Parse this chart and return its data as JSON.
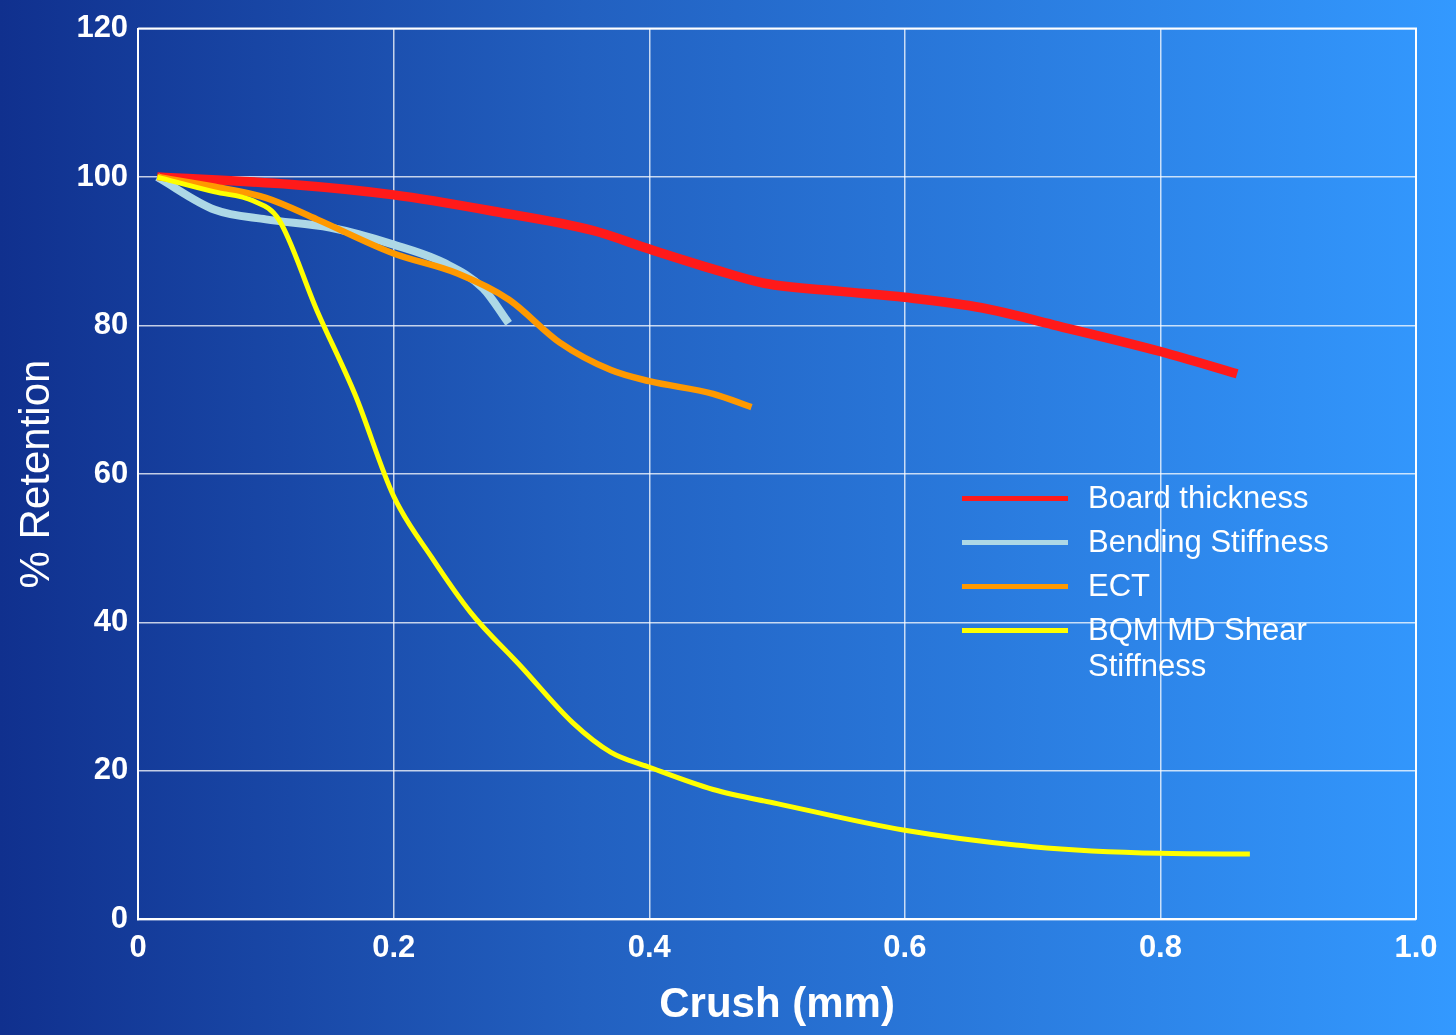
{
  "chart_data": {
    "type": "line",
    "xlabel": "Crush (mm)",
    "ylabel": "% Retention",
    "xlim": [
      0,
      1
    ],
    "xticks": [
      0,
      0.2,
      0.4,
      0.6,
      0.8,
      {
        "value": 1,
        "label": "1.0"
      }
    ],
    "ylim": [
      0,
      120
    ],
    "yticks": [
      0,
      20,
      40,
      60,
      80,
      100,
      120
    ],
    "grid": true,
    "legend": "right",
    "series": [
      {
        "name": "Board thickness",
        "color": "#ff1a1a",
        "x": [
          0.015,
          0.12,
          0.2,
          0.278,
          0.356,
          0.4,
          0.45,
          0.49,
          0.55,
          0.6,
          0.66,
          0.716,
          0.8,
          0.86
        ],
        "values": [
          100,
          99,
          97.6,
          95.4,
          92.8,
          90.3,
          87.6,
          85.7,
          84.6,
          83.8,
          82.4,
          80.1,
          76.5,
          73.5
        ]
      },
      {
        "name": "Bending Stiffness",
        "color": "#add8e6",
        "x": [
          0.015,
          0.06,
          0.1,
          0.15,
          0.2,
          0.24,
          0.27,
          0.29
        ],
        "values": [
          100,
          95.6,
          94.3,
          93.2,
          90.9,
          88.4,
          85,
          80.3
        ]
      },
      {
        "name": "ECT",
        "color": "#ff9900",
        "x": [
          0.015,
          0.06,
          0.1,
          0.14,
          0.2,
          0.25,
          0.29,
          0.33,
          0.37,
          0.4,
          0.45,
          0.48
        ],
        "values": [
          100,
          98.7,
          97.2,
          94.3,
          89.7,
          87,
          83.5,
          77.7,
          74,
          72.5,
          70.8,
          69
        ]
      },
      {
        "name": "BQM MD Shear Stiffness",
        "color": "#ffff00",
        "x": [
          0.015,
          0.06,
          0.09,
          0.11,
          0.14,
          0.17,
          0.2,
          0.23,
          0.26,
          0.3,
          0.34,
          0.37,
          0.4,
          0.45,
          0.5,
          0.6,
          0.7,
          0.8,
          0.87
        ],
        "values": [
          100,
          98,
          96.8,
          94.3,
          82,
          70.6,
          57,
          48.7,
          41.4,
          34,
          26.5,
          22.5,
          20.5,
          17.5,
          15.6,
          12,
          9.8,
          8.9,
          8.8
        ]
      }
    ]
  }
}
